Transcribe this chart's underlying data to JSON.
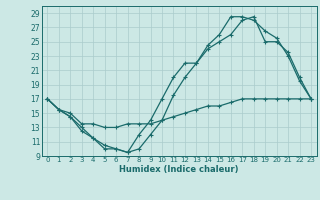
{
  "xlabel": "Humidex (Indice chaleur)",
  "bg_color": "#cce8e5",
  "grid_color": "#aacccc",
  "line_color": "#1a6b6b",
  "xlim": [
    -0.5,
    23.5
  ],
  "ylim": [
    9,
    30
  ],
  "xticks": [
    0,
    1,
    2,
    3,
    4,
    5,
    6,
    7,
    8,
    9,
    10,
    11,
    12,
    13,
    14,
    15,
    16,
    17,
    18,
    19,
    20,
    21,
    22,
    23
  ],
  "yticks": [
    9,
    11,
    13,
    15,
    17,
    19,
    21,
    23,
    25,
    27,
    29
  ],
  "line1_x": [
    0,
    1,
    2,
    3,
    4,
    5,
    6,
    7,
    8,
    9,
    10,
    11,
    12,
    13,
    14,
    15,
    16,
    17,
    18,
    19,
    20,
    21,
    22,
    23
  ],
  "line1_y": [
    17,
    15.5,
    14.5,
    12.5,
    11.5,
    10.5,
    10,
    9.5,
    10,
    12,
    14,
    17.5,
    20,
    22,
    24.5,
    26,
    28.5,
    28.5,
    28,
    26.5,
    25.5,
    23,
    19.5,
    17
  ],
  "line2_x": [
    0,
    1,
    2,
    3,
    4,
    5,
    6,
    7,
    8,
    9,
    10,
    11,
    12,
    13,
    14,
    15,
    16,
    17,
    18,
    19,
    20,
    21,
    22,
    23
  ],
  "line2_y": [
    17,
    15.5,
    14.5,
    13,
    11.5,
    10,
    10,
    9.5,
    12,
    14,
    17,
    20,
    22,
    22,
    24,
    25,
    26,
    28,
    28.5,
    25,
    25,
    23.5,
    20,
    17
  ],
  "line3_x": [
    0,
    1,
    2,
    3,
    4,
    5,
    6,
    7,
    8,
    9,
    10,
    11,
    12,
    13,
    14,
    15,
    16,
    17,
    18,
    19,
    20,
    21,
    22,
    23
  ],
  "line3_y": [
    17,
    15.5,
    15,
    13.5,
    13.5,
    13,
    13,
    13.5,
    13.5,
    13.5,
    14,
    14.5,
    15,
    15.5,
    16,
    16,
    16.5,
    17,
    17,
    17,
    17,
    17,
    17,
    17
  ]
}
